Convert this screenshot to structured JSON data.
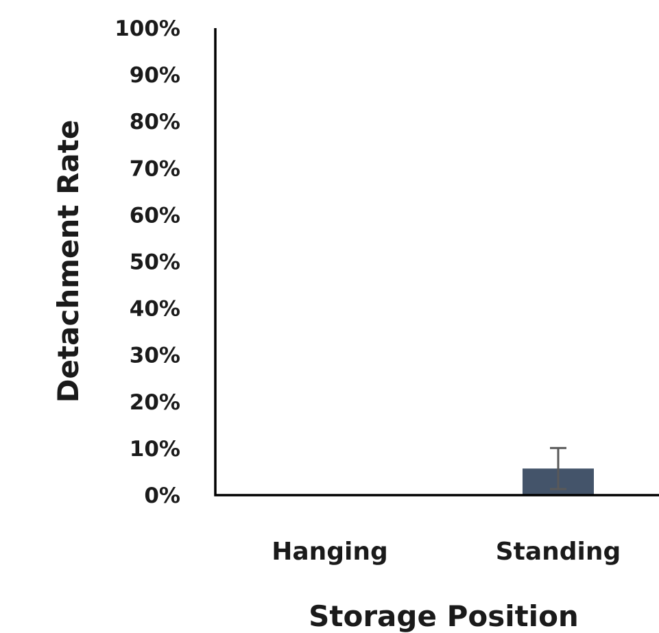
{
  "chart_data": {
    "type": "bar",
    "title": "",
    "xlabel": "Storage Position",
    "ylabel": "Detachment Rate",
    "categories": [
      "Hanging",
      "Standing"
    ],
    "values": [
      0,
      0.057
    ],
    "error_bars": {
      "lower": [
        0,
        0.013
      ],
      "upper": [
        0,
        0.101
      ]
    },
    "ylim": [
      0,
      1
    ],
    "yticks": [
      0,
      0.1,
      0.2,
      0.3,
      0.4,
      0.5,
      0.6,
      0.7,
      0.8,
      0.9,
      1.0
    ],
    "ytick_labels": [
      "0%",
      "10%",
      "20%",
      "30%",
      "40%",
      "50%",
      "60%",
      "70%",
      "80%",
      "90%",
      "100%"
    ],
    "grid": false,
    "bar_color": "#44546a",
    "error_bar_color": "#595959",
    "axis_color": "#000000"
  }
}
